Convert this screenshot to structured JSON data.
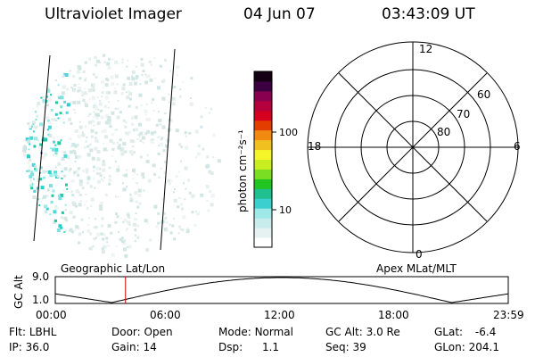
{
  "header": {
    "instrument": "Ultraviolet Imager",
    "date": "04 Jun 07",
    "time": "03:43:09 UT"
  },
  "colorbar": {
    "label": "photon cm⁻²s⁻¹",
    "ticks": [
      "100",
      "10"
    ],
    "colors": [
      "#ffffff",
      "#e6f2f2",
      "#c8ecec",
      "#9ee8e8",
      "#3ccfcf",
      "#1fbf8f",
      "#22c422",
      "#7adf22",
      "#c8ee22",
      "#f5f52a",
      "#f0c020",
      "#f08a10",
      "#e43d00",
      "#d4001e",
      "#b4003c",
      "#8a0050",
      "#3c0040",
      "#140014"
    ]
  },
  "polar": {
    "mlt_labels": [
      "12",
      "18",
      "6",
      "0"
    ],
    "lat_labels": [
      "60",
      "70",
      "80"
    ],
    "title": "Apex MLat/MLT",
    "grid_color": "#000000"
  },
  "geo": {
    "title": "Geographic Lat/Lon",
    "aurora_color": "#2ad0d0"
  },
  "alt_plot": {
    "ylabel": "GC Alt",
    "yticks": [
      "9.0",
      "1.0"
    ],
    "xticks": [
      "00:00",
      "06:00",
      "12:00",
      "18:00",
      "23:59"
    ],
    "marker_hour": 3.72,
    "marker_color": "#cc0000"
  },
  "info": {
    "row1": [
      {
        "label": "Flt:",
        "value": "LBHL"
      },
      {
        "label": "Door:",
        "value": "Open"
      },
      {
        "label": "Mode:",
        "value": "Normal"
      },
      {
        "label": "GC Alt:",
        "value": "3.0 Re"
      },
      {
        "label": "GLat:",
        "value": "-6.4"
      }
    ],
    "row2": [
      {
        "label": "IP:",
        "value": "36.0"
      },
      {
        "label": "Gain:",
        "value": "14"
      },
      {
        "label": "Dsp:",
        "value": "1.1"
      },
      {
        "label": "Seq:",
        "value": "39"
      },
      {
        "label": "GLon:",
        "value": "204.1"
      }
    ]
  }
}
